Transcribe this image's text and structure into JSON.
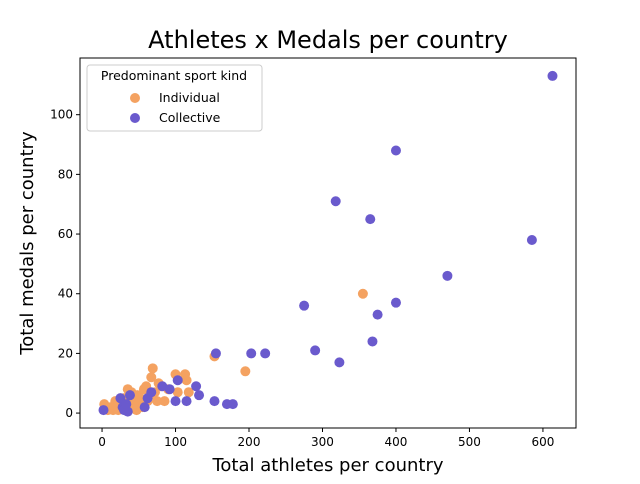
{
  "chart_data": {
    "type": "scatter",
    "title": "Athletes x Medals per country",
    "xlabel": "Total athletes per country",
    "ylabel": "Total medals per country",
    "xlim": [
      -30,
      645
    ],
    "ylim": [
      -5,
      119
    ],
    "xticks": [
      0,
      100,
      200,
      300,
      400,
      500,
      600
    ],
    "yticks": [
      0,
      20,
      40,
      60,
      80,
      100
    ],
    "grid": false,
    "legend": {
      "title": "Predominant sport kind",
      "placement": "top-left"
    },
    "series": [
      {
        "name": "Individual",
        "color": "#f4a261",
        "points": [
          [
            3,
            3
          ],
          [
            8,
            1
          ],
          [
            12,
            2
          ],
          [
            15,
            1
          ],
          [
            18,
            4
          ],
          [
            20,
            2
          ],
          [
            22,
            1
          ],
          [
            25,
            3
          ],
          [
            28,
            2
          ],
          [
            30,
            5
          ],
          [
            32,
            1
          ],
          [
            35,
            8
          ],
          [
            38,
            3
          ],
          [
            40,
            7
          ],
          [
            42,
            2
          ],
          [
            45,
            4
          ],
          [
            47,
            1
          ],
          [
            48,
            6
          ],
          [
            50,
            3
          ],
          [
            52,
            5
          ],
          [
            55,
            2
          ],
          [
            57,
            8
          ],
          [
            60,
            9
          ],
          [
            62,
            4
          ],
          [
            65,
            6
          ],
          [
            67,
            12
          ],
          [
            69,
            15
          ],
          [
            72,
            7
          ],
          [
            75,
            4
          ],
          [
            77,
            10
          ],
          [
            80,
            9
          ],
          [
            85,
            4
          ],
          [
            90,
            8
          ],
          [
            100,
            13
          ],
          [
            103,
            7
          ],
          [
            113,
            13
          ],
          [
            115,
            11
          ],
          [
            118,
            7
          ],
          [
            153,
            19
          ],
          [
            195,
            14
          ],
          [
            355,
            40
          ]
        ]
      },
      {
        "name": "Collective",
        "color": "#6a5acd",
        "points": [
          [
            2,
            1
          ],
          [
            25,
            5
          ],
          [
            28,
            2
          ],
          [
            30,
            1
          ],
          [
            33,
            3
          ],
          [
            35,
            0.5
          ],
          [
            38,
            6
          ],
          [
            58,
            2
          ],
          [
            62,
            5
          ],
          [
            67,
            7
          ],
          [
            82,
            9
          ],
          [
            92,
            8
          ],
          [
            100,
            4
          ],
          [
            103,
            11
          ],
          [
            115,
            4
          ],
          [
            128,
            9
          ],
          [
            132,
            6
          ],
          [
            153,
            4
          ],
          [
            155,
            20
          ],
          [
            170,
            3
          ],
          [
            178,
            3
          ],
          [
            203,
            20
          ],
          [
            222,
            20
          ],
          [
            275,
            36
          ],
          [
            290,
            21
          ],
          [
            318,
            71
          ],
          [
            323,
            17
          ],
          [
            365,
            65
          ],
          [
            368,
            24
          ],
          [
            375,
            33
          ],
          [
            400,
            37
          ],
          [
            400,
            88
          ],
          [
            470,
            46
          ],
          [
            585,
            58
          ],
          [
            613,
            113
          ]
        ]
      }
    ]
  }
}
